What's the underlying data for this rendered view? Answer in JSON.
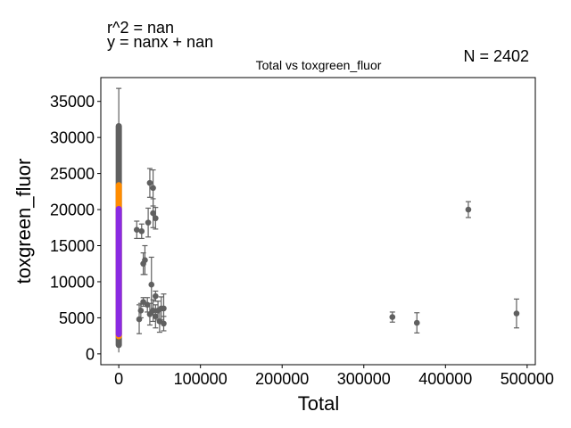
{
  "header": {
    "r2_text": "r^2 = nan",
    "eq_text": "y = nanx + nan",
    "n_text": "N = 2402"
  },
  "chart_data": {
    "type": "scatter",
    "title": "Total vs toxgreen_fluor",
    "xlabel": "Total",
    "ylabel": "toxgreen_fluor",
    "xlim": [
      -22000,
      510000
    ],
    "ylim": [
      -1500,
      38300
    ],
    "xticks": [
      0,
      100000,
      200000,
      300000,
      400000,
      500000
    ],
    "yticks": [
      0,
      5000,
      10000,
      15000,
      20000,
      25000,
      30000,
      35000
    ],
    "grid": false,
    "colors": {
      "gray": "#606060",
      "orange": "#ff8c00",
      "purple": "#8a2be2"
    },
    "bands": [
      {
        "x": 0,
        "y_min": 800,
        "y_max": 32000,
        "color": "gray"
      },
      {
        "x": 0,
        "y_min": 2000,
        "y_max": 23800,
        "color": "orange"
      },
      {
        "x": 0,
        "y_min": 2300,
        "y_max": 20500,
        "color": "purple"
      }
    ],
    "points": [
      {
        "x": 22000,
        "y": 17200,
        "err": 1200
      },
      {
        "x": 28000,
        "y": 17000,
        "err": 1000
      },
      {
        "x": 30000,
        "y": 12500,
        "err": 1500
      },
      {
        "x": 32000,
        "y": 13000,
        "err": 2000
      },
      {
        "x": 36000,
        "y": 18200,
        "err": 2000
      },
      {
        "x": 38000,
        "y": 23700,
        "err": 2000
      },
      {
        "x": 42000,
        "y": 23000,
        "err": 2500
      },
      {
        "x": 42000,
        "y": 19500,
        "err": 2000
      },
      {
        "x": 45000,
        "y": 18800,
        "err": 1500
      },
      {
        "x": 40000,
        "y": 9600,
        "err": 3800
      },
      {
        "x": 45000,
        "y": 8000,
        "err": 700
      },
      {
        "x": 25000,
        "y": 4800,
        "err": 2000
      },
      {
        "x": 27000,
        "y": 6000,
        "err": 1000
      },
      {
        "x": 30000,
        "y": 7200,
        "err": 600
      },
      {
        "x": 35000,
        "y": 6800,
        "err": 1000
      },
      {
        "x": 38000,
        "y": 5500,
        "err": 1500
      },
      {
        "x": 42000,
        "y": 6000,
        "err": 1500
      },
      {
        "x": 45000,
        "y": 5200,
        "err": 1600
      },
      {
        "x": 48000,
        "y": 6000,
        "err": 1300
      },
      {
        "x": 50000,
        "y": 4500,
        "err": 1500
      },
      {
        "x": 52000,
        "y": 6300,
        "err": 1600
      },
      {
        "x": 55000,
        "y": 6300,
        "err": 2000
      },
      {
        "x": 55000,
        "y": 4200,
        "err": 1000
      },
      {
        "x": 335000,
        "y": 5100,
        "err": 700
      },
      {
        "x": 365000,
        "y": 4300,
        "err": 1400
      },
      {
        "x": 428000,
        "y": 20000,
        "err": 1100
      },
      {
        "x": 487000,
        "y": 5600,
        "err": 2000
      }
    ]
  }
}
